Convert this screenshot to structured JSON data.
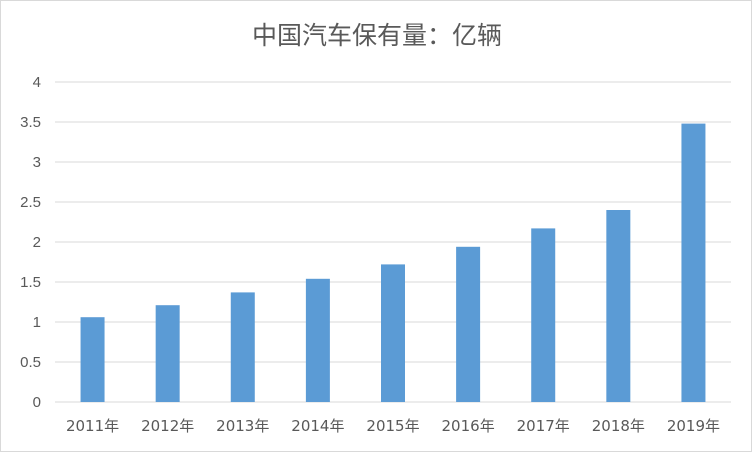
{
  "chart_data": {
    "type": "bar",
    "title": "中国汽车保有量：亿辆",
    "categories": [
      "2011年",
      "2012年",
      "2013年",
      "2014年",
      "2015年",
      "2016年",
      "2017年",
      "2018年",
      "2019年"
    ],
    "values": [
      1.06,
      1.21,
      1.37,
      1.54,
      1.72,
      1.94,
      2.17,
      2.4,
      3.48
    ],
    "ylim": [
      0,
      4
    ],
    "yticks": [
      "0",
      "0.5",
      "1",
      "1.5",
      "2",
      "2.5",
      "3",
      "3.5",
      "4"
    ],
    "grid": true,
    "bar_color": "#5b9bd5",
    "legend": "none"
  }
}
